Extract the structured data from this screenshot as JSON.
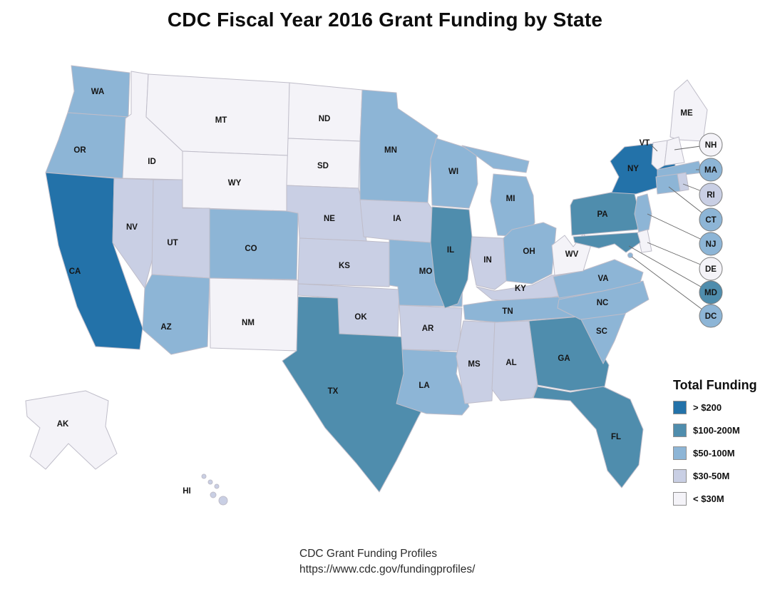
{
  "title": "CDC Fiscal Year 2016 Grant Funding by State",
  "legend": {
    "title": "Total Funding"
  },
  "footer": {
    "source": "CDC Grant Funding Profiles",
    "url": "https://www.cdc.gov/fundingprofiles/"
  },
  "map": {
    "stroke": "#bfbdc9",
    "circle_stroke": "#7d7d7d",
    "label_color": "#151515"
  },
  "chart_data": {
    "type": "heatmap",
    "variant": "us-state-choropleth",
    "title": "CDC Fiscal Year 2016 Grant Funding by State",
    "legend_title": "Total Funding",
    "unit": "USD (millions), CDC FY2016 grant funding",
    "buckets": [
      {
        "label": "> $200",
        "color": "#2372a9"
      },
      {
        "label": "$100-200M",
        "color": "#4f8dad"
      },
      {
        "label": "$50-100M",
        "color": "#8db5d6"
      },
      {
        "label": "$30-50M",
        "color": "#c9cfe4"
      },
      {
        "label": "< $30M",
        "color": "#f4f3f8"
      }
    ],
    "states": [
      {
        "abbr": "WA",
        "bucket": "$50-100M"
      },
      {
        "abbr": "OR",
        "bucket": "$50-100M"
      },
      {
        "abbr": "CA",
        "bucket": "> $200"
      },
      {
        "abbr": "ID",
        "bucket": "< $30M"
      },
      {
        "abbr": "MT",
        "bucket": "< $30M"
      },
      {
        "abbr": "WY",
        "bucket": "< $30M"
      },
      {
        "abbr": "NV",
        "bucket": "$30-50M"
      },
      {
        "abbr": "UT",
        "bucket": "$30-50M"
      },
      {
        "abbr": "CO",
        "bucket": "$50-100M"
      },
      {
        "abbr": "AZ",
        "bucket": "$50-100M"
      },
      {
        "abbr": "NM",
        "bucket": "< $30M"
      },
      {
        "abbr": "ND",
        "bucket": "< $30M"
      },
      {
        "abbr": "SD",
        "bucket": "< $30M"
      },
      {
        "abbr": "NE",
        "bucket": "$30-50M"
      },
      {
        "abbr": "KS",
        "bucket": "$30-50M"
      },
      {
        "abbr": "OK",
        "bucket": "$30-50M"
      },
      {
        "abbr": "TX",
        "bucket": "$100-200M"
      },
      {
        "abbr": "MN",
        "bucket": "$50-100M"
      },
      {
        "abbr": "IA",
        "bucket": "$30-50M"
      },
      {
        "abbr": "MO",
        "bucket": "$50-100M"
      },
      {
        "abbr": "AR",
        "bucket": "$30-50M"
      },
      {
        "abbr": "LA",
        "bucket": "$50-100M"
      },
      {
        "abbr": "WI",
        "bucket": "$50-100M"
      },
      {
        "abbr": "IL",
        "bucket": "$100-200M"
      },
      {
        "abbr": "MI",
        "bucket": "$50-100M"
      },
      {
        "abbr": "IN",
        "bucket": "$30-50M"
      },
      {
        "abbr": "OH",
        "bucket": "$50-100M"
      },
      {
        "abbr": "KY",
        "bucket": "$30-50M"
      },
      {
        "abbr": "TN",
        "bucket": "$50-100M"
      },
      {
        "abbr": "MS",
        "bucket": "$30-50M"
      },
      {
        "abbr": "AL",
        "bucket": "$30-50M"
      },
      {
        "abbr": "GA",
        "bucket": "$100-200M"
      },
      {
        "abbr": "FL",
        "bucket": "$100-200M"
      },
      {
        "abbr": "SC",
        "bucket": "$50-100M"
      },
      {
        "abbr": "NC",
        "bucket": "$50-100M"
      },
      {
        "abbr": "VA",
        "bucket": "$50-100M"
      },
      {
        "abbr": "WV",
        "bucket": "< $30M"
      },
      {
        "abbr": "PA",
        "bucket": "$100-200M"
      },
      {
        "abbr": "NY",
        "bucket": "> $200"
      },
      {
        "abbr": "ME",
        "bucket": "< $30M"
      },
      {
        "abbr": "VT",
        "bucket": "< $30M"
      },
      {
        "abbr": "NH",
        "bucket": "< $30M"
      },
      {
        "abbr": "MA",
        "bucket": "$50-100M"
      },
      {
        "abbr": "RI",
        "bucket": "$30-50M"
      },
      {
        "abbr": "CT",
        "bucket": "$50-100M"
      },
      {
        "abbr": "NJ",
        "bucket": "$50-100M"
      },
      {
        "abbr": "DE",
        "bucket": "< $30M"
      },
      {
        "abbr": "MD",
        "bucket": "$100-200M"
      },
      {
        "abbr": "DC",
        "bucket": "$50-100M"
      },
      {
        "abbr": "AK",
        "bucket": "< $30M"
      },
      {
        "abbr": "HI",
        "bucket": "$30-50M"
      }
    ]
  }
}
